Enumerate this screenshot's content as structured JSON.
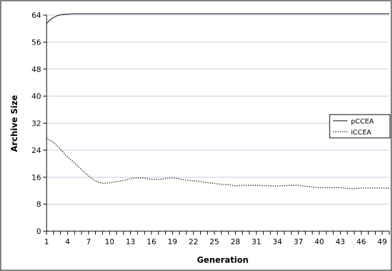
{
  "chart_data": {
    "type": "line",
    "title": "",
    "xlabel": "Generation",
    "ylabel": "Archive Size",
    "ylim": [
      0,
      64
    ],
    "xlim": [
      1,
      50
    ],
    "yticks": [
      0,
      8,
      16,
      24,
      32,
      40,
      48,
      56,
      64
    ],
    "xtick_labels": [
      "1",
      "4",
      "7",
      "10",
      "13",
      "16",
      "19",
      "22",
      "25",
      "28",
      "31",
      "34",
      "37",
      "40",
      "43",
      "46",
      "49"
    ],
    "grid": "horizontal",
    "legend_position": "right",
    "series": [
      {
        "name": "pCCEA",
        "style": "solid",
        "color": "#000000",
        "x": [
          1,
          1.5,
          2,
          2.5,
          3,
          4,
          5,
          6,
          7,
          8,
          10,
          15,
          20,
          25,
          30,
          35,
          40,
          45,
          50
        ],
        "y": [
          61.5,
          62.6,
          63.3,
          63.8,
          64.1,
          64.3,
          64.4,
          64.4,
          64.4,
          64.4,
          64.4,
          64.4,
          64.4,
          64.4,
          64.4,
          64.4,
          64.4,
          64.4,
          64.4
        ]
      },
      {
        "name": "iCCEA",
        "style": "dotted",
        "color": "#000000",
        "x": [
          1,
          2,
          3,
          4,
          5,
          6,
          7,
          8,
          9,
          10,
          11,
          12,
          13,
          14,
          15,
          16,
          17,
          18,
          19,
          20,
          21,
          22,
          23,
          24,
          25,
          26,
          27,
          28,
          29,
          30,
          31,
          32,
          33,
          34,
          35,
          36,
          37,
          38,
          39,
          40,
          41,
          42,
          43,
          44,
          45,
          46,
          47,
          48,
          49,
          50
        ],
        "y": [
          27.5,
          26.3,
          24.2,
          22,
          20.2,
          18.2,
          16.4,
          14.8,
          14.2,
          14.3,
          14.7,
          15,
          15.6,
          15.8,
          15.7,
          15.4,
          15.3,
          15.6,
          15.8,
          15.5,
          15.1,
          14.9,
          14.7,
          14.4,
          14.1,
          13.9,
          13.8,
          13.4,
          13.6,
          13.6,
          13.6,
          13.5,
          13.4,
          13.4,
          13.5,
          13.6,
          13.6,
          13.3,
          13.1,
          12.9,
          12.9,
          12.9,
          12.9,
          12.7,
          12.6,
          12.8,
          12.8,
          12.8,
          12.8,
          12.7
        ]
      }
    ]
  }
}
